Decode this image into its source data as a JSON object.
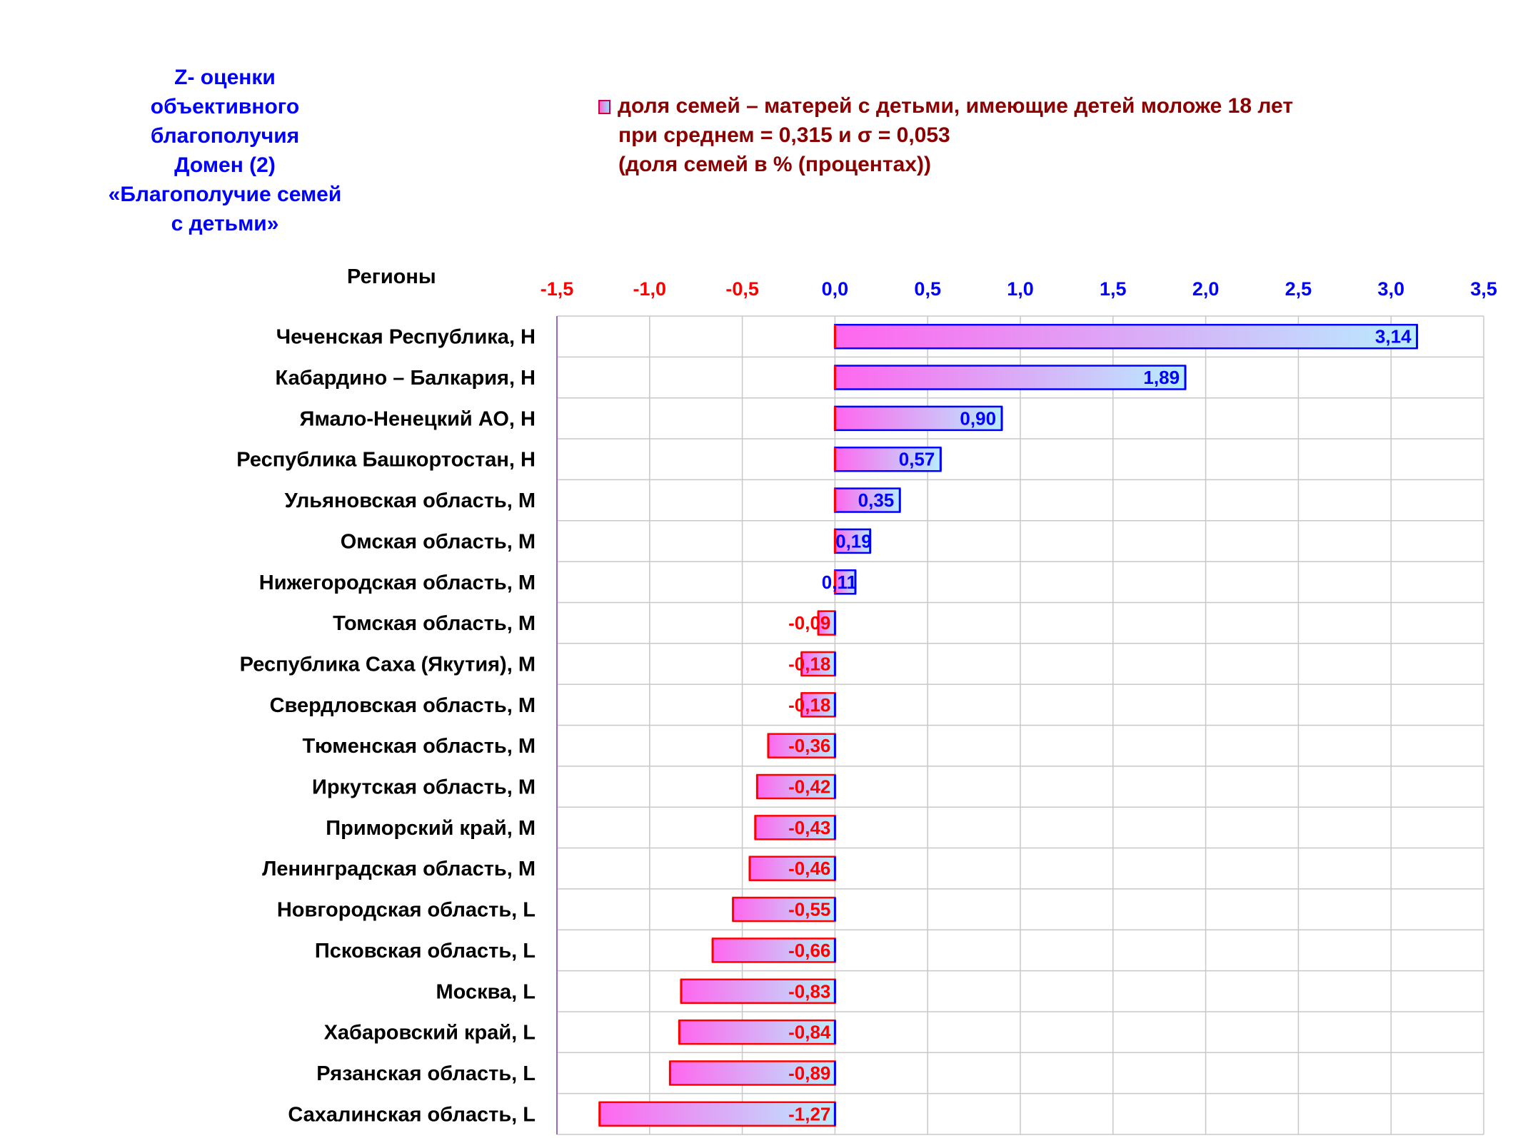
{
  "title_lines": [
    "Z- оценки",
    "объективного",
    "благополучия",
    "Домен (2)",
    "«Благополучие семей",
    "с детьми»"
  ],
  "legend": {
    "line1": "доля семей – матерей с детьми, имеющие детей моложе 18 лет",
    "line2": "при среднем = 0,315  и σ = 0,053",
    "line3": "(доля семей в % (процентах))"
  },
  "regions_header": "Регионы",
  "colors": {
    "negative": "#ff0000",
    "positive": "#0000ff",
    "bar_gradient_start": "#ff66ee",
    "bar_gradient_end": "#b8ecff",
    "grid": "#c8c8c8",
    "title": "#0000ff",
    "legend": "#8b0000"
  },
  "chart_data": {
    "type": "bar",
    "orientation": "horizontal",
    "xlim": [
      -1.5,
      3.5
    ],
    "ticks": [
      -1.5,
      -1.0,
      -0.5,
      0.0,
      0.5,
      1.0,
      1.5,
      2.0,
      2.5,
      3.0,
      3.5
    ],
    "tick_labels": [
      "-1,5",
      "-1,0",
      "-0,5",
      "0,0",
      "0,5",
      "1,0",
      "1,5",
      "2,0",
      "2,5",
      "3,0",
      "3,5"
    ],
    "grid": true,
    "categories": [
      "Чеченская Республика,  H",
      "Кабардино – Балкария,  H",
      "Ямало-Ненецкий АО,  H",
      "Республика Башкортостан,  H",
      "Ульяновская область,  M",
      "Омская область,  M",
      "Нижегородская область,  M",
      "Томская область,  M",
      "Республика Саха (Якутия),  M",
      "Свердловская область,  M",
      "Тюменская область,  M",
      "Иркутская область,  M",
      "Приморский край,  M",
      "Ленинградская область,  M",
      "Новгородская область,  L",
      "Псковская область,  L",
      "Москва,  L",
      "Хабаровский край,  L",
      "Рязанская область,  L",
      "Сахалинская область,  L"
    ],
    "values": [
      3.14,
      1.89,
      0.9,
      0.57,
      0.35,
      0.19,
      0.11,
      -0.09,
      -0.18,
      -0.18,
      -0.36,
      -0.42,
      -0.43,
      -0.46,
      -0.55,
      -0.66,
      -0.83,
      -0.84,
      -0.89,
      -1.27
    ],
    "value_labels": [
      "3,14",
      "1,89",
      "0,90",
      "0,57",
      "0,35",
      "0,19",
      "0,11",
      "-0,09",
      "-0,18",
      "-0,18",
      "-0,36",
      "-0,42",
      "-0,43",
      "-0,46",
      "-0,55",
      "-0,66",
      "-0,83",
      "-0,84",
      "-0,89",
      "-1,27"
    ]
  }
}
